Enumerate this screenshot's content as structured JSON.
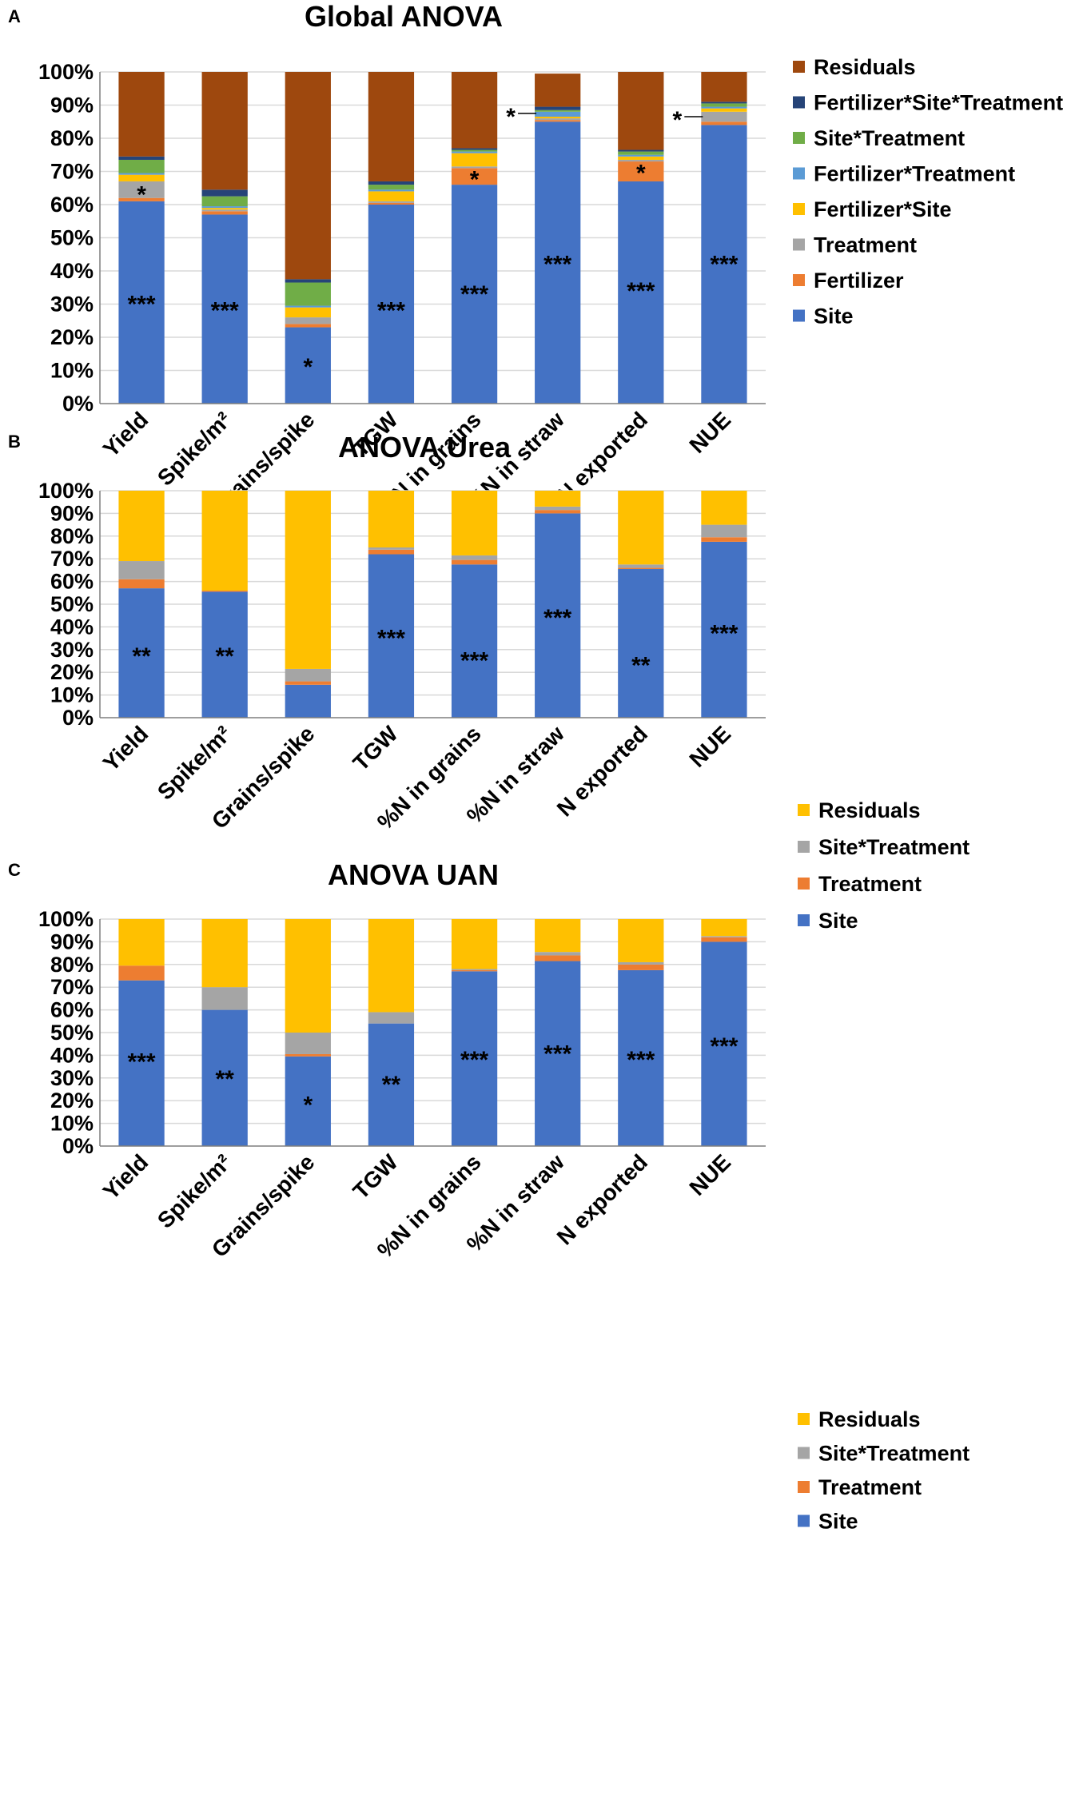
{
  "chart_data": [
    {
      "type": "bar",
      "stacked": true,
      "panel": "A",
      "title": "Global ANOVA",
      "categories": [
        "Yield",
        "Spike/m²",
        "Grains/spike",
        "TGW",
        "%N in grains",
        "%N in straw",
        "N exported",
        "NUE"
      ],
      "y_ticks": [
        "0%",
        "10%",
        "20%",
        "30%",
        "40%",
        "50%",
        "60%",
        "70%",
        "80%",
        "90%",
        "100%"
      ],
      "ylim": [
        0,
        100
      ],
      "grid": true,
      "legend_position": "right",
      "series": [
        {
          "name": "Site",
          "color": "#4472C4",
          "values": [
            61,
            57,
            23,
            60,
            66,
            85,
            67,
            84
          ]
        },
        {
          "name": "Fertilizer",
          "color": "#ED7D31",
          "values": [
            1,
            1,
            1,
            0.5,
            5,
            0.5,
            6,
            1
          ]
        },
        {
          "name": "Treatment",
          "color": "#A5A5A5",
          "values": [
            5,
            0.5,
            2,
            0.5,
            0.5,
            0.5,
            0.5,
            3
          ]
        },
        {
          "name": "Fertilizer*Site",
          "color": "#FFC000",
          "values": [
            2,
            0.5,
            3,
            3,
            4,
            0.5,
            1,
            1
          ]
        },
        {
          "name": "Fertilizer*Treatment",
          "color": "#5B9BD5",
          "values": [
            0.5,
            0.5,
            0.5,
            0.5,
            0.5,
            1.5,
            0.5,
            0.5
          ]
        },
        {
          "name": "Site*Treatment",
          "color": "#70AD47",
          "values": [
            4,
            3,
            7,
            1.5,
            0.5,
            0.5,
            1,
            1
          ]
        },
        {
          "name": "Fertilizer*Site*Treatment",
          "color": "#264478",
          "values": [
            1,
            2,
            1,
            1,
            0.5,
            1,
            0.5,
            0.5
          ]
        },
        {
          "name": "Residuals",
          "color": "#9E480E",
          "values": [
            25.5,
            35.5,
            62.5,
            33,
            23,
            10,
            23.5,
            9
          ]
        }
      ],
      "legend_order": [
        "Residuals",
        "Fertilizer*Site*Treatment",
        "Site*Treatment",
        "Fertilizer*Treatment",
        "Fertilizer*Site",
        "Treatment",
        "Fertilizer",
        "Site"
      ],
      "annotations": [
        {
          "category": "Yield",
          "text": "***",
          "y": 31
        },
        {
          "category": "Yield",
          "text": "*",
          "y": 64
        },
        {
          "category": "Spike/m²",
          "text": "***",
          "y": 29
        },
        {
          "category": "Grains/spike",
          "text": "*",
          "y": 12
        },
        {
          "category": "TGW",
          "text": "***",
          "y": 29
        },
        {
          "category": "%N in grains",
          "text": "***",
          "y": 34
        },
        {
          "category": "%N in grains",
          "text": "*",
          "y": 68.5
        },
        {
          "category": "%N in straw",
          "text": "***",
          "y": 43
        },
        {
          "category": "%N in straw",
          "text": "*",
          "y": 87.5,
          "pointer": true
        },
        {
          "category": "N exported",
          "text": "***",
          "y": 35
        },
        {
          "category": "N exported",
          "text": "*",
          "y": 70.5
        },
        {
          "category": "NUE",
          "text": "***",
          "y": 43
        },
        {
          "category": "NUE",
          "text": "*",
          "y": 86.5,
          "pointer": true
        }
      ]
    },
    {
      "type": "bar",
      "stacked": true,
      "panel": "B",
      "title": "ANOVA Urea",
      "categories": [
        "Yield",
        "Spike/m²",
        "Grains/spike",
        "TGW",
        "%N in grains",
        "%N in straw",
        "N exported",
        "NUE"
      ],
      "y_ticks": [
        "0%",
        "10%",
        "20%",
        "30%",
        "40%",
        "50%",
        "60%",
        "70%",
        "80%",
        "90%",
        "100%"
      ],
      "ylim": [
        0,
        100
      ],
      "grid": true,
      "legend_position": "right",
      "series": [
        {
          "name": "Site",
          "color": "#4472C4",
          "values": [
            57,
            55.5,
            14.5,
            72,
            67.5,
            90,
            65.5,
            77.5
          ]
        },
        {
          "name": "Treatment",
          "color": "#ED7D31",
          "values": [
            4,
            0.5,
            1.5,
            2,
            2,
            1.5,
            0.5,
            2
          ]
        },
        {
          "name": "Site*Treatment",
          "color": "#A5A5A5",
          "values": [
            8,
            0,
            5.5,
            1,
            2,
            1.5,
            1.5,
            5.5
          ]
        },
        {
          "name": "Residuals",
          "color": "#FFC000",
          "values": [
            31,
            44,
            78.5,
            25,
            28.5,
            7,
            32.5,
            15
          ]
        }
      ],
      "legend_order": [
        "Residuals",
        "Site*Treatment",
        "Treatment",
        "Site"
      ],
      "annotations": [
        {
          "category": "Yield",
          "text": "**",
          "y": 28.5
        },
        {
          "category": "Spike/m²",
          "text": "**",
          "y": 28.5
        },
        {
          "category": "TGW",
          "text": "***",
          "y": 36.5
        },
        {
          "category": "%N in grains",
          "text": "***",
          "y": 26.5
        },
        {
          "category": "%N in straw",
          "text": "***",
          "y": 45.5
        },
        {
          "category": "N exported",
          "text": "**",
          "y": 24.5
        },
        {
          "category": "NUE",
          "text": "***",
          "y": 38.5
        }
      ]
    },
    {
      "type": "bar",
      "stacked": true,
      "panel": "C",
      "title": "ANOVA UAN",
      "categories": [
        "Yield",
        "Spike/m²",
        "Grains/spike",
        "TGW",
        "%N in grains",
        "%N in straw",
        "N exported",
        "NUE"
      ],
      "y_ticks": [
        "0%",
        "10%",
        "20%",
        "30%",
        "40%",
        "50%",
        "60%",
        "70%",
        "80%",
        "90%",
        "100%"
      ],
      "ylim": [
        0,
        100
      ],
      "grid": true,
      "legend_position": "right",
      "series": [
        {
          "name": "Site",
          "color": "#4472C4",
          "values": [
            73,
            60,
            39.5,
            54,
            77,
            81.5,
            77.5,
            90
          ]
        },
        {
          "name": "Treatment",
          "color": "#ED7D31",
          "values": [
            6.5,
            0,
            1,
            0,
            0.5,
            2.5,
            2.5,
            2
          ]
        },
        {
          "name": "Site*Treatment",
          "color": "#A5A5A5",
          "values": [
            0,
            10,
            9.5,
            5,
            0.5,
            1.5,
            1,
            0.5
          ]
        },
        {
          "name": "Residuals",
          "color": "#FFC000",
          "values": [
            20.5,
            30,
            50,
            41,
            22,
            14.5,
            19,
            7.5
          ]
        }
      ],
      "legend_order": [
        "Residuals",
        "Site*Treatment",
        "Treatment",
        "Site"
      ],
      "annotations": [
        {
          "category": "Yield",
          "text": "***",
          "y": 38.5
        },
        {
          "category": "Spike/m²",
          "text": "**",
          "y": 31
        },
        {
          "category": "Grains/spike",
          "text": "*",
          "y": 19.5
        },
        {
          "category": "TGW",
          "text": "**",
          "y": 28.5
        },
        {
          "category": "%N in grains",
          "text": "***",
          "y": 39.5
        },
        {
          "category": "%N in straw",
          "text": "***",
          "y": 42
        },
        {
          "category": "N exported",
          "text": "***",
          "y": 39.5
        },
        {
          "category": "NUE",
          "text": "***",
          "y": 45.5
        }
      ]
    }
  ]
}
